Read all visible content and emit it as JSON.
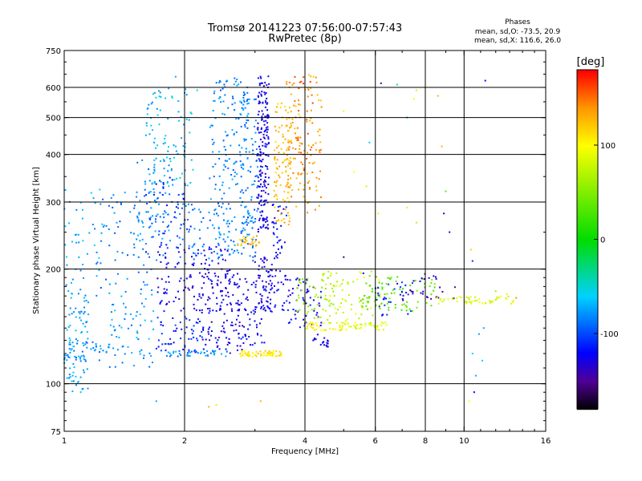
{
  "chart_data": {
    "type": "scatter",
    "title": "Tromsø 20141223 07:56:00-07:57:43",
    "subtitle": "RwPretec (8p)",
    "phase_stats": {
      "heading": "Phases",
      "line_o": "mean, sd,O: -73.5, 20.9",
      "line_x": "mean, sd,X: 116.6, 26.0"
    },
    "xlabel": "Frequency [MHz]",
    "ylabel": "Stationary phase Virtual Height [km]",
    "x_scale": "log",
    "y_scale": "log",
    "xlim": [
      1,
      16
    ],
    "ylim": [
      75,
      750
    ],
    "x_ticks": [
      1,
      2,
      4,
      6,
      8,
      10,
      16
    ],
    "y_ticks": [
      75,
      100,
      200,
      300,
      400,
      500,
      600,
      750
    ],
    "grid_x": [
      2,
      4,
      6,
      8,
      10
    ],
    "grid_y": [
      100,
      200,
      300,
      400,
      500,
      600
    ],
    "grid": true,
    "colorbar": {
      "label": "[deg]",
      "min": -180,
      "max": 180,
      "ticks": [
        100,
        0,
        -100
      ]
    },
    "clusters": [
      {
        "x": [
          1.0,
          1.15
        ],
        "y": [
          95,
          190
        ],
        "phase": -75,
        "n": 90
      },
      {
        "x": [
          1.0,
          1.3
        ],
        "y": [
          115,
          130
        ],
        "phase": -80,
        "n": 40
      },
      {
        "x": [
          1.0,
          1.25
        ],
        "y": [
          190,
          330
        ],
        "phase": -70,
        "n": 40
      },
      {
        "x": [
          1.2,
          1.7
        ],
        "y": [
          170,
          320
        ],
        "phase": -85,
        "n": 70
      },
      {
        "x": [
          1.3,
          1.7
        ],
        "y": [
          110,
          170
        ],
        "phase": -75,
        "n": 60
      },
      {
        "x": [
          1.5,
          1.85
        ],
        "y": [
          210,
          400
        ],
        "phase": -80,
        "n": 70
      },
      {
        "x": [
          1.6,
          2.1
        ],
        "y": [
          330,
          600
        ],
        "phase": -65,
        "n": 90
      },
      {
        "x": [
          1.6,
          2.1
        ],
        "y": [
          220,
          350
        ],
        "phase": -110,
        "n": 50
      },
      {
        "x": [
          1.7,
          2.6
        ],
        "y": [
          155,
          230
        ],
        "phase": -125,
        "n": 130
      },
      {
        "x": [
          1.7,
          2.3
        ],
        "y": [
          120,
          150
        ],
        "phase": -110,
        "n": 60
      },
      {
        "x": [
          1.8,
          2.6
        ],
        "y": [
          118,
          122
        ],
        "phase": -80,
        "n": 40
      },
      {
        "x": [
          1.9,
          2.6
        ],
        "y": [
          210,
          300
        ],
        "phase": -85,
        "n": 70
      },
      {
        "x": [
          2.3,
          2.9
        ],
        "y": [
          220,
          640
        ],
        "phase": -80,
        "n": 160
      },
      {
        "x": [
          2.2,
          2.9
        ],
        "y": [
          120,
          200
        ],
        "phase": -130,
        "n": 100
      },
      {
        "x": [
          2.75,
          3.05
        ],
        "y": [
          210,
          560
        ],
        "phase": -85,
        "n": 100
      },
      {
        "x": [
          2.6,
          3.2
        ],
        "y": [
          125,
          190
        ],
        "phase": -125,
        "n": 60
      },
      {
        "x": [
          2.7,
          3.1
        ],
        "y": [
          230,
          245
        ],
        "phase": 125,
        "n": 30
      },
      {
        "x": [
          2.75,
          3.5
        ],
        "y": [
          118,
          122
        ],
        "phase": 110,
        "n": 60
      },
      {
        "x": [
          3.05,
          3.25
        ],
        "y": [
          250,
          650
        ],
        "phase": -125,
        "n": 180
      },
      {
        "x": [
          3.0,
          3.3
        ],
        "y": [
          155,
          220
        ],
        "phase": -130,
        "n": 60
      },
      {
        "x": [
          3.3,
          3.6
        ],
        "y": [
          150,
          300
        ],
        "phase": -120,
        "n": 60
      },
      {
        "x": [
          3.35,
          3.7
        ],
        "y": [
          260,
          560
        ],
        "phase": 125,
        "n": 100
      },
      {
        "x": [
          3.6,
          4.4
        ],
        "y": [
          280,
          650
        ],
        "phase": 135,
        "n": 110
      },
      {
        "x": [
          3.6,
          4.4
        ],
        "y": [
          140,
          190
        ],
        "phase": -120,
        "n": 60
      },
      {
        "x": [
          3.7,
          4.2
        ],
        "y": [
          310,
          650
        ],
        "phase": 150,
        "n": 40
      },
      {
        "x": [
          3.8,
          4.8
        ],
        "y": [
          148,
          190
        ],
        "phase": 60,
        "n": 50
      },
      {
        "x": [
          4.0,
          5.0
        ],
        "y": [
          138,
          145
        ],
        "phase": 100,
        "n": 40
      },
      {
        "x": [
          4.1,
          4.6
        ],
        "y": [
          125,
          135
        ],
        "phase": -120,
        "n": 20
      },
      {
        "x": [
          4.4,
          6.2
        ],
        "y": [
          140,
          200
        ],
        "phase": 80,
        "n": 80
      },
      {
        "x": [
          5.0,
          6.5
        ],
        "y": [
          138,
          145
        ],
        "phase": 90,
        "n": 30
      },
      {
        "x": [
          5.5,
          8.5
        ],
        "y": [
          155,
          195
        ],
        "phase": 35,
        "n": 80
      },
      {
        "x": [
          6.0,
          7.5
        ],
        "y": [
          150,
          185
        ],
        "phase": -110,
        "n": 30
      },
      {
        "x": [
          7.0,
          9.5
        ],
        "y": [
          165,
          195
        ],
        "phase": -140,
        "n": 30
      },
      {
        "x": [
          8.5,
          13.5
        ],
        "y": [
          162,
          170
        ],
        "phase": 85,
        "n": 50
      }
    ],
    "scattered_points": [
      {
        "x": 1.9,
        "y": 640,
        "phase": -70
      },
      {
        "x": 2.15,
        "y": 590,
        "phase": -55
      },
      {
        "x": 3.6,
        "y": 620,
        "phase": 140
      },
      {
        "x": 4.2,
        "y": 640,
        "phase": 120
      },
      {
        "x": 5.0,
        "y": 520,
        "phase": 90
      },
      {
        "x": 5.8,
        "y": 430,
        "phase": -60
      },
      {
        "x": 6.2,
        "y": 615,
        "phase": -150
      },
      {
        "x": 6.8,
        "y": 610,
        "phase": -50
      },
      {
        "x": 7.2,
        "y": 500,
        "phase": -70
      },
      {
        "x": 7.6,
        "y": 590,
        "phase": 80
      },
      {
        "x": 7.5,
        "y": 560,
        "phase": 100
      },
      {
        "x": 8.0,
        "y": 600,
        "phase": 100
      },
      {
        "x": 8.6,
        "y": 570,
        "phase": 130
      },
      {
        "x": 8.8,
        "y": 420,
        "phase": 130
      },
      {
        "x": 11.3,
        "y": 625,
        "phase": -130
      },
      {
        "x": 5.3,
        "y": 360,
        "phase": 100
      },
      {
        "x": 5.7,
        "y": 330,
        "phase": 80
      },
      {
        "x": 7.2,
        "y": 290,
        "phase": 90
      },
      {
        "x": 7.6,
        "y": 265,
        "phase": 70
      },
      {
        "x": 8.9,
        "y": 280,
        "phase": -130
      },
      {
        "x": 9.2,
        "y": 250,
        "phase": -140
      },
      {
        "x": 9.0,
        "y": 320,
        "phase": 40
      },
      {
        "x": 10.4,
        "y": 225,
        "phase": 120
      },
      {
        "x": 5.0,
        "y": 215,
        "phase": -160
      },
      {
        "x": 5.6,
        "y": 195,
        "phase": -120
      },
      {
        "x": 6.1,
        "y": 280,
        "phase": 110
      },
      {
        "x": 10.5,
        "y": 210,
        "phase": -110
      },
      {
        "x": 10.7,
        "y": 105,
        "phase": -70
      },
      {
        "x": 10.6,
        "y": 95,
        "phase": -120
      },
      {
        "x": 10.3,
        "y": 90,
        "phase": 100
      },
      {
        "x": 10.5,
        "y": 120,
        "phase": -60
      },
      {
        "x": 10.9,
        "y": 135,
        "phase": -75
      },
      {
        "x": 11.1,
        "y": 115,
        "phase": -60
      },
      {
        "x": 11.2,
        "y": 140,
        "phase": -70
      },
      {
        "x": 2.3,
        "y": 87,
        "phase": 130
      },
      {
        "x": 2.4,
        "y": 88,
        "phase": 110
      },
      {
        "x": 3.1,
        "y": 90,
        "phase": 130
      },
      {
        "x": 1.7,
        "y": 90,
        "phase": -70
      },
      {
        "x": 1.1,
        "y": 95,
        "phase": -65
      },
      {
        "x": 1.05,
        "y": 105,
        "phase": -70
      },
      {
        "x": 13.5,
        "y": 168,
        "phase": 140
      },
      {
        "x": 12.8,
        "y": 172,
        "phase": 110
      },
      {
        "x": 12.0,
        "y": 175,
        "phase": 60
      }
    ]
  }
}
